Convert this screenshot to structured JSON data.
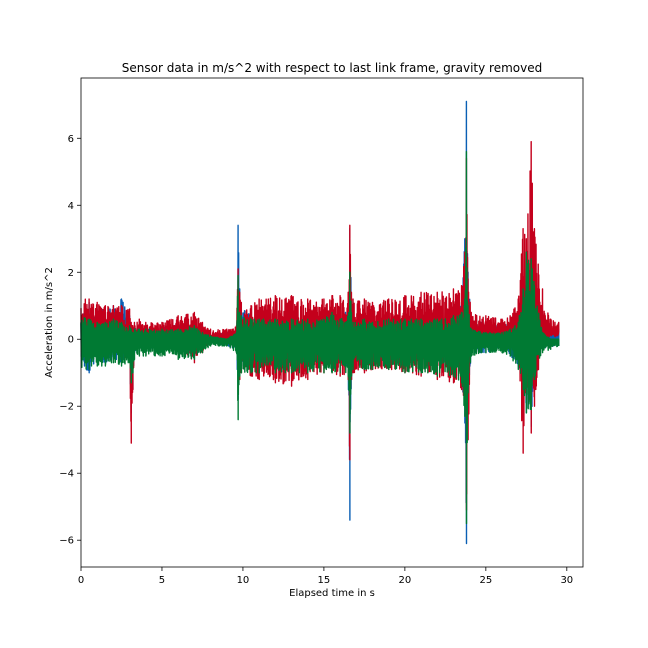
{
  "chart_data": {
    "type": "line",
    "title": "Sensor data in m/s^2 with respect to last link frame, gravity removed",
    "xlabel": "Elapsed time in s",
    "ylabel": "Acceleration in m/s^2",
    "xlim": [
      0,
      31
    ],
    "ylim": [
      -6.8,
      7.8
    ],
    "xticks": [
      0,
      5,
      10,
      15,
      20,
      25,
      30
    ],
    "yticks": [
      -6,
      -4,
      -2,
      0,
      2,
      4,
      6
    ],
    "xtick_labels": [
      "0",
      "5",
      "10",
      "15",
      "20",
      "25",
      "30"
    ],
    "ytick_labels": [
      "−6",
      "−4",
      "−2",
      "0",
      "2",
      "4",
      "6"
    ],
    "grid": false,
    "legend": "none",
    "series": [
      {
        "color": "#0a5fb4",
        "x": [
          0.0,
          0.5,
          1.0,
          1.5,
          2.0,
          2.5,
          2.6,
          3.0,
          3.1,
          3.2,
          3.3,
          3.6,
          4.0,
          5.0,
          6.0,
          7.0,
          7.5,
          8.0,
          9.0,
          9.6,
          9.7,
          9.8,
          9.9,
          10.5,
          11.0,
          12.0,
          13.0,
          14.0,
          15.0,
          15.5,
          16.0,
          16.5,
          16.6,
          16.7,
          16.8,
          17.5,
          18.0,
          19.0,
          20.0,
          21.0,
          22.0,
          23.0,
          23.5,
          23.7,
          23.8,
          23.9,
          24.1,
          25.0,
          26.0,
          26.5,
          27.0,
          27.3,
          27.5,
          27.8,
          28.0,
          28.5,
          29.0,
          29.5
        ],
        "y_high": [
          1.0,
          1.1,
          0.9,
          0.9,
          1.0,
          1.2,
          1.1,
          0.7,
          0.3,
          0.2,
          0.3,
          0.4,
          0.3,
          0.35,
          0.5,
          0.5,
          0.2,
          0.1,
          0.2,
          0.3,
          3.4,
          1.5,
          0.9,
          0.8,
          0.7,
          0.5,
          0.6,
          0.4,
          0.6,
          0.9,
          0.5,
          1.0,
          3.3,
          1.2,
          0.6,
          0.7,
          0.4,
          0.4,
          0.6,
          0.5,
          0.5,
          0.9,
          1.1,
          3.0,
          7.1,
          2.0,
          0.6,
          0.5,
          0.4,
          0.5,
          0.9,
          1.5,
          2.0,
          2.4,
          1.0,
          0.5,
          0.3,
          0.3
        ],
        "y_low": [
          -0.8,
          -1.0,
          -0.6,
          -0.7,
          -0.6,
          -0.7,
          -0.6,
          -0.5,
          -2.2,
          -1.5,
          -0.4,
          -0.3,
          -0.3,
          -0.3,
          -0.4,
          -0.5,
          -0.3,
          -0.1,
          -0.2,
          -0.3,
          -1.8,
          -1.0,
          -0.8,
          -0.7,
          -0.6,
          -0.6,
          -0.6,
          -0.4,
          -0.6,
          -0.8,
          -0.5,
          -1.0,
          -5.4,
          -1.2,
          -0.6,
          -0.6,
          -0.4,
          -0.4,
          -0.5,
          -0.5,
          -0.5,
          -0.9,
          -1.1,
          -2.5,
          -6.1,
          -2.2,
          -0.4,
          -0.4,
          -0.3,
          -0.5,
          -0.8,
          -1.6,
          -2.2,
          -2.6,
          -1.0,
          -0.3,
          -0.2,
          -0.2
        ]
      },
      {
        "color": "#c4001c",
        "x": [
          0.0,
          0.5,
          1.0,
          1.5,
          2.0,
          2.5,
          3.0,
          3.1,
          3.2,
          3.3,
          3.6,
          4.0,
          5.0,
          6.0,
          7.0,
          7.5,
          8.0,
          9.0,
          9.6,
          9.7,
          9.8,
          9.9,
          10.5,
          11.0,
          12.0,
          13.0,
          14.0,
          15.0,
          15.5,
          16.0,
          16.5,
          16.6,
          16.7,
          16.8,
          17.5,
          18.0,
          19.0,
          20.0,
          21.0,
          22.0,
          23.0,
          23.5,
          23.7,
          23.8,
          23.9,
          24.1,
          25.0,
          26.0,
          26.5,
          27.0,
          27.3,
          27.5,
          27.8,
          28.0,
          28.5,
          29.0,
          29.5
        ],
        "y_high": [
          1.3,
          1.2,
          1.1,
          1.0,
          1.0,
          1.0,
          0.9,
          0.5,
          0.4,
          0.5,
          0.6,
          0.5,
          0.5,
          0.7,
          0.8,
          0.5,
          0.3,
          0.3,
          0.4,
          2.1,
          1.4,
          1.1,
          1.0,
          1.2,
          1.3,
          1.3,
          1.2,
          1.2,
          1.3,
          1.3,
          1.4,
          3.4,
          1.4,
          1.2,
          1.2,
          1.1,
          1.2,
          1.3,
          1.4,
          1.4,
          1.5,
          1.6,
          2.6,
          5.4,
          1.8,
          0.8,
          0.7,
          0.6,
          0.7,
          1.2,
          3.3,
          3.0,
          5.9,
          3.3,
          1.5,
          0.6,
          0.5
        ],
        "y_low": [
          -0.5,
          -0.6,
          -0.4,
          -0.4,
          -0.4,
          -0.5,
          -0.6,
          -3.1,
          -1.5,
          -0.3,
          -0.2,
          -0.2,
          -0.2,
          -0.3,
          -0.7,
          -0.4,
          0.0,
          0.0,
          -0.1,
          -1.0,
          -1.2,
          -1.0,
          -1.1,
          -1.2,
          -1.3,
          -1.4,
          -1.2,
          -1.0,
          -1.0,
          -1.1,
          -1.2,
          -3.6,
          -1.2,
          -1.0,
          -1.0,
          -0.9,
          -0.9,
          -1.0,
          -1.1,
          -1.2,
          -1.3,
          -1.5,
          -2.0,
          -5.1,
          -3.0,
          0.0,
          0.1,
          0.1,
          0.1,
          -0.3,
          -3.4,
          -1.8,
          -2.8,
          -2.0,
          0.1,
          0.2,
          0.2
        ]
      },
      {
        "color": "#007a33",
        "x": [
          0.0,
          0.5,
          1.0,
          1.5,
          2.0,
          2.5,
          3.0,
          3.1,
          3.2,
          3.3,
          3.6,
          4.0,
          5.0,
          6.0,
          7.0,
          7.5,
          8.0,
          9.0,
          9.6,
          9.7,
          9.8,
          9.9,
          10.5,
          11.0,
          12.0,
          13.0,
          14.0,
          15.0,
          15.5,
          16.0,
          16.5,
          16.6,
          16.7,
          16.8,
          17.5,
          18.0,
          19.0,
          20.0,
          21.0,
          22.0,
          23.0,
          23.5,
          23.7,
          23.8,
          23.9,
          24.1,
          25.0,
          26.0,
          26.5,
          27.0,
          27.3,
          27.5,
          27.8,
          28.0,
          28.5,
          29.0,
          29.5
        ],
        "y_high": [
          0.7,
          0.6,
          0.5,
          0.5,
          0.6,
          0.5,
          0.4,
          0.3,
          0.2,
          0.3,
          0.3,
          0.3,
          0.3,
          0.3,
          0.4,
          0.2,
          0.1,
          0.0,
          0.2,
          1.9,
          0.8,
          0.7,
          0.6,
          0.6,
          0.6,
          0.6,
          0.6,
          0.6,
          0.8,
          0.6,
          0.7,
          2.0,
          0.8,
          0.5,
          0.6,
          0.5,
          0.6,
          0.6,
          0.6,
          0.6,
          0.7,
          0.8,
          1.2,
          5.6,
          1.0,
          0.3,
          0.2,
          0.2,
          0.3,
          0.5,
          1.5,
          2.6,
          2.4,
          1.6,
          0.2,
          0.0,
          0.0
        ],
        "y_low": [
          -0.9,
          -0.9,
          -0.8,
          -0.8,
          -0.7,
          -0.8,
          -0.7,
          -1.3,
          -1.0,
          -0.6,
          -0.5,
          -0.5,
          -0.5,
          -0.6,
          -0.6,
          -0.4,
          -0.2,
          -0.2,
          -0.4,
          -2.4,
          -1.1,
          -1.0,
          -1.0,
          -1.0,
          -1.0,
          -1.0,
          -1.0,
          -1.0,
          -1.0,
          -1.0,
          -1.1,
          -2.8,
          -1.1,
          -0.9,
          -0.9,
          -0.9,
          -0.9,
          -1.0,
          -1.0,
          -1.1,
          -1.1,
          -1.3,
          -2.3,
          -5.5,
          -1.6,
          -0.5,
          -0.4,
          -0.4,
          -0.5,
          -0.9,
          -1.5,
          -2.2,
          -2.1,
          -1.2,
          -0.4,
          -0.3,
          -0.2
        ]
      }
    ]
  }
}
